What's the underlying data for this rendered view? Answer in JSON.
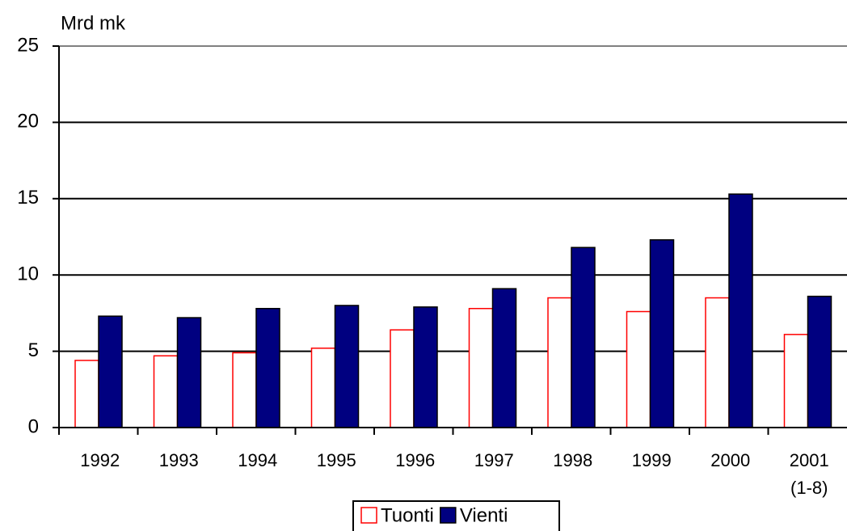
{
  "chart_data": {
    "type": "bar",
    "y_axis_label": "Mrd mk",
    "categories": [
      "1992",
      "1993",
      "1994",
      "1995",
      "1996",
      "1997",
      "1998",
      "1999",
      "2000",
      "2001\n(1-8)"
    ],
    "series": [
      {
        "name": "Tuonti",
        "color": "#ff0000",
        "fill": "#ffffff",
        "values": [
          4.4,
          4.7,
          4.9,
          5.2,
          6.4,
          7.8,
          8.5,
          7.6,
          8.5,
          6.1
        ]
      },
      {
        "name": "Vienti",
        "color": "#000000",
        "fill": "#000080",
        "values": [
          7.3,
          7.2,
          7.8,
          8.0,
          7.9,
          9.1,
          11.8,
          12.3,
          15.3,
          8.6
        ]
      }
    ],
    "ylim": [
      0,
      25
    ],
    "yticks": [
      0,
      5,
      10,
      15,
      20,
      25
    ],
    "grid": true,
    "legend": "bottom"
  }
}
